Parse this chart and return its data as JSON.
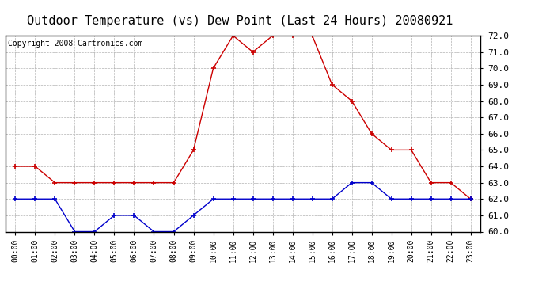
{
  "title": "Outdoor Temperature (vs) Dew Point (Last 24 Hours) 20080921",
  "copyright": "Copyright 2008 Cartronics.com",
  "x_labels": [
    "00:00",
    "01:00",
    "02:00",
    "03:00",
    "04:00",
    "05:00",
    "06:00",
    "07:00",
    "08:00",
    "09:00",
    "10:00",
    "11:00",
    "12:00",
    "13:00",
    "14:00",
    "15:00",
    "16:00",
    "17:00",
    "18:00",
    "19:00",
    "20:00",
    "21:00",
    "22:00",
    "23:00"
  ],
  "temp_data": [
    64.0,
    64.0,
    63.0,
    63.0,
    63.0,
    63.0,
    63.0,
    63.0,
    63.0,
    65.0,
    70.0,
    72.0,
    71.0,
    72.0,
    72.0,
    72.0,
    69.0,
    68.0,
    66.0,
    65.0,
    65.0,
    63.0,
    63.0,
    62.0
  ],
  "dew_data": [
    62.0,
    62.0,
    62.0,
    60.0,
    60.0,
    61.0,
    61.0,
    60.0,
    60.0,
    61.0,
    62.0,
    62.0,
    62.0,
    62.0,
    62.0,
    62.0,
    62.0,
    63.0,
    63.0,
    62.0,
    62.0,
    62.0,
    62.0,
    62.0
  ],
  "temp_color": "#cc0000",
  "dew_color": "#0000cc",
  "bg_color": "#ffffff",
  "plot_bg_color": "#ffffff",
  "grid_color": "#aaaaaa",
  "ylim": [
    60.0,
    72.0
  ],
  "yticks": [
    60.0,
    61.0,
    62.0,
    63.0,
    64.0,
    65.0,
    66.0,
    67.0,
    68.0,
    69.0,
    70.0,
    71.0,
    72.0
  ],
  "title_fontsize": 11,
  "copyright_fontsize": 7,
  "marker_size": 4,
  "line_width": 1.0
}
